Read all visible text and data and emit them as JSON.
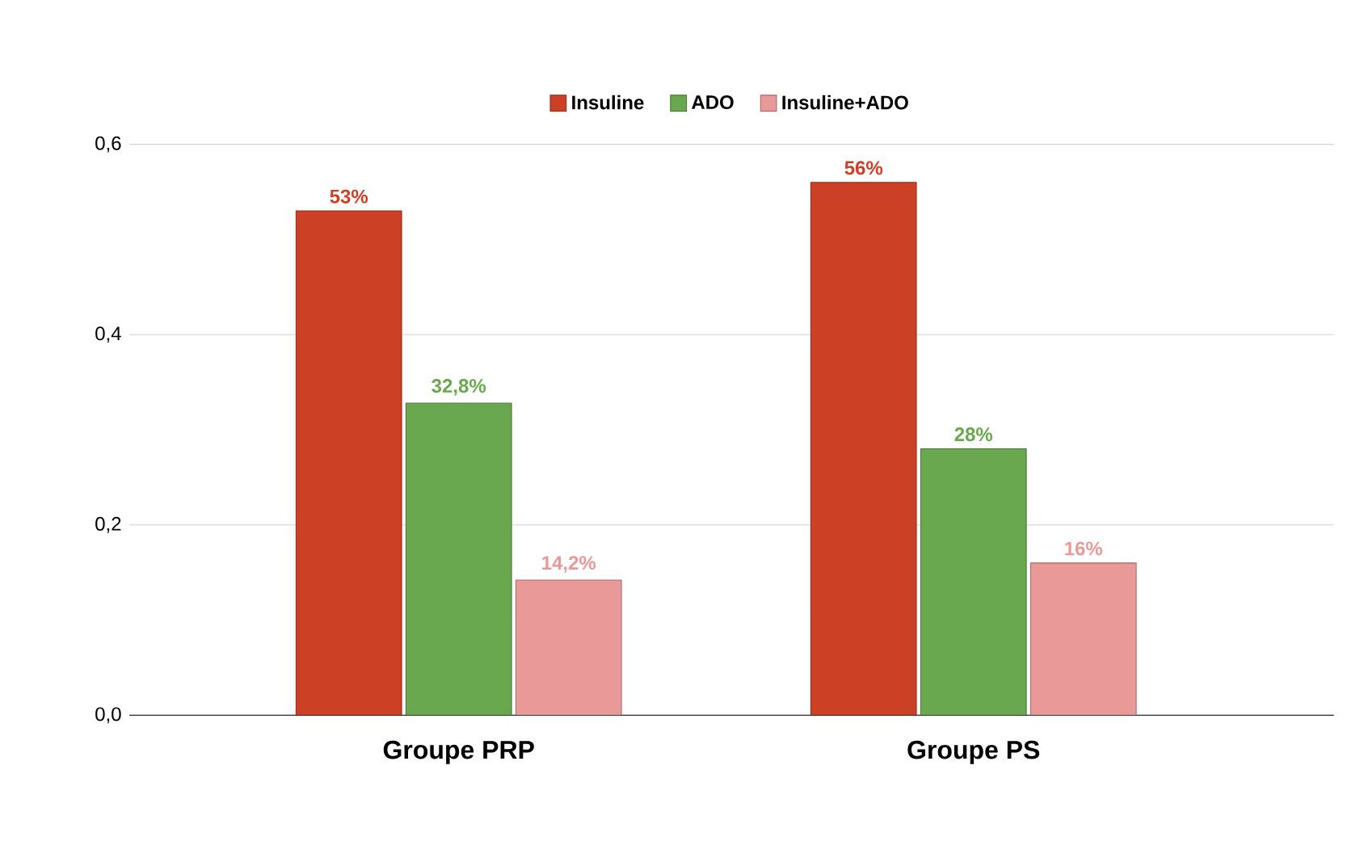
{
  "chart_data": {
    "type": "bar",
    "categories": [
      "Groupe PRP",
      "Groupe PS"
    ],
    "series": [
      {
        "name": "Insuline",
        "color": "#cc4125",
        "values": [
          0.53,
          0.56
        ],
        "value_labels": [
          "53%",
          "56%"
        ]
      },
      {
        "name": "ADO",
        "color": "#6aa84f",
        "values": [
          0.328,
          0.28
        ],
        "value_labels": [
          "32,8%",
          "28%"
        ]
      },
      {
        "name": "Insuline+ADO",
        "color": "#ea9999",
        "values": [
          0.142,
          0.16
        ],
        "value_labels": [
          "14,2%",
          "16%"
        ]
      }
    ],
    "ylim": [
      0,
      0.6
    ],
    "yticks": [
      {
        "value": 0,
        "label": "0,0"
      },
      {
        "value": 0.2,
        "label": "0,2"
      },
      {
        "value": 0.4,
        "label": "0,4"
      },
      {
        "value": 0.6,
        "label": "0,6"
      }
    ],
    "grid": "y",
    "legend": "top"
  }
}
